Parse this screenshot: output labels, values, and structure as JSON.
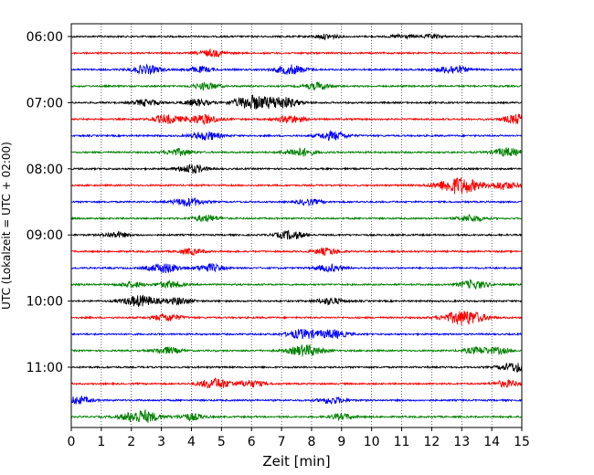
{
  "chart_data": {
    "type": "line",
    "xlabel": "Zeit  [min]",
    "ylabel": "UTC (Lokalzeit = UTC + 02:00)",
    "xlim": [
      0,
      15
    ],
    "x_ticks": [
      0,
      1,
      2,
      3,
      4,
      5,
      6,
      7,
      8,
      9,
      10,
      11,
      12,
      13,
      14,
      15
    ],
    "y_tick_labels": [
      "06:00",
      "07:00",
      "08:00",
      "09:00",
      "10:00",
      "11:00"
    ],
    "grid": "vertical dotted at each minute",
    "trace_interval_minutes": 15,
    "trace_colors": [
      "#000000",
      "#ff0000",
      "#0000ff",
      "#008000"
    ],
    "traces": [
      {
        "start": "06:00",
        "events": [
          [
            8.5,
            0.25
          ],
          [
            11.0,
            0.2
          ],
          [
            12.0,
            0.2
          ]
        ]
      },
      {
        "start": "06:15",
        "events": [
          [
            4.7,
            0.35
          ]
        ]
      },
      {
        "start": "06:30",
        "events": [
          [
            2.5,
            0.45
          ],
          [
            4.3,
            0.3
          ],
          [
            7.3,
            0.5
          ],
          [
            12.7,
            0.45
          ]
        ]
      },
      {
        "start": "06:45",
        "events": [
          [
            4.5,
            0.35
          ],
          [
            8.2,
            0.35
          ]
        ]
      },
      {
        "start": "07:00",
        "events": [
          [
            2.5,
            0.35
          ],
          [
            4.2,
            0.35
          ],
          [
            6.0,
            0.7
          ],
          [
            7.0,
            0.6
          ]
        ]
      },
      {
        "start": "07:15",
        "events": [
          [
            3.2,
            0.45
          ],
          [
            4.4,
            0.5
          ],
          [
            7.3,
            0.4
          ],
          [
            14.9,
            0.5
          ]
        ]
      },
      {
        "start": "07:30",
        "events": [
          [
            4.5,
            0.45
          ],
          [
            8.7,
            0.45
          ]
        ]
      },
      {
        "start": "07:45",
        "events": [
          [
            3.6,
            0.35
          ],
          [
            7.6,
            0.45
          ],
          [
            14.5,
            0.45
          ]
        ]
      },
      {
        "start": "08:00",
        "events": [
          [
            4.0,
            0.45
          ]
        ]
      },
      {
        "start": "08:15",
        "events": [
          [
            12.9,
            0.9
          ],
          [
            14.4,
            0.4
          ]
        ]
      },
      {
        "start": "08:30",
        "events": [
          [
            3.9,
            0.45
          ],
          [
            7.9,
            0.3
          ]
        ]
      },
      {
        "start": "08:45",
        "events": [
          [
            4.5,
            0.35
          ],
          [
            13.3,
            0.35
          ]
        ]
      },
      {
        "start": "09:00",
        "events": [
          [
            1.5,
            0.3
          ],
          [
            7.3,
            0.45
          ]
        ]
      },
      {
        "start": "09:15",
        "events": [
          [
            4.0,
            0.3
          ],
          [
            8.5,
            0.35
          ]
        ]
      },
      {
        "start": "09:30",
        "events": [
          [
            3.1,
            0.5
          ],
          [
            4.6,
            0.4
          ],
          [
            8.6,
            0.35
          ]
        ]
      },
      {
        "start": "09:45",
        "events": [
          [
            2.0,
            0.3
          ],
          [
            3.3,
            0.35
          ],
          [
            13.4,
            0.45
          ]
        ]
      },
      {
        "start": "10:00",
        "events": [
          [
            2.3,
            0.6
          ],
          [
            3.6,
            0.35
          ],
          [
            8.6,
            0.35
          ]
        ]
      },
      {
        "start": "10:15",
        "events": [
          [
            3.2,
            0.4
          ],
          [
            13.1,
            0.8
          ]
        ]
      },
      {
        "start": "10:30",
        "events": [
          [
            7.7,
            0.5
          ],
          [
            8.7,
            0.45
          ]
        ]
      },
      {
        "start": "10:45",
        "events": [
          [
            3.2,
            0.35
          ],
          [
            7.8,
            0.6
          ],
          [
            13.5,
            0.35
          ],
          [
            14.2,
            0.3
          ]
        ]
      },
      {
        "start": "11:00",
        "events": [
          [
            14.8,
            0.5
          ]
        ]
      },
      {
        "start": "11:15",
        "events": [
          [
            4.8,
            0.55
          ],
          [
            6.0,
            0.35
          ],
          [
            14.5,
            0.35
          ]
        ]
      },
      {
        "start": "11:30",
        "events": [
          [
            0.2,
            0.4
          ],
          [
            8.7,
            0.35
          ]
        ]
      },
      {
        "start": "11:45",
        "events": [
          [
            2.3,
            0.7
          ],
          [
            4.0,
            0.35
          ],
          [
            9.0,
            0.3
          ]
        ]
      }
    ]
  }
}
